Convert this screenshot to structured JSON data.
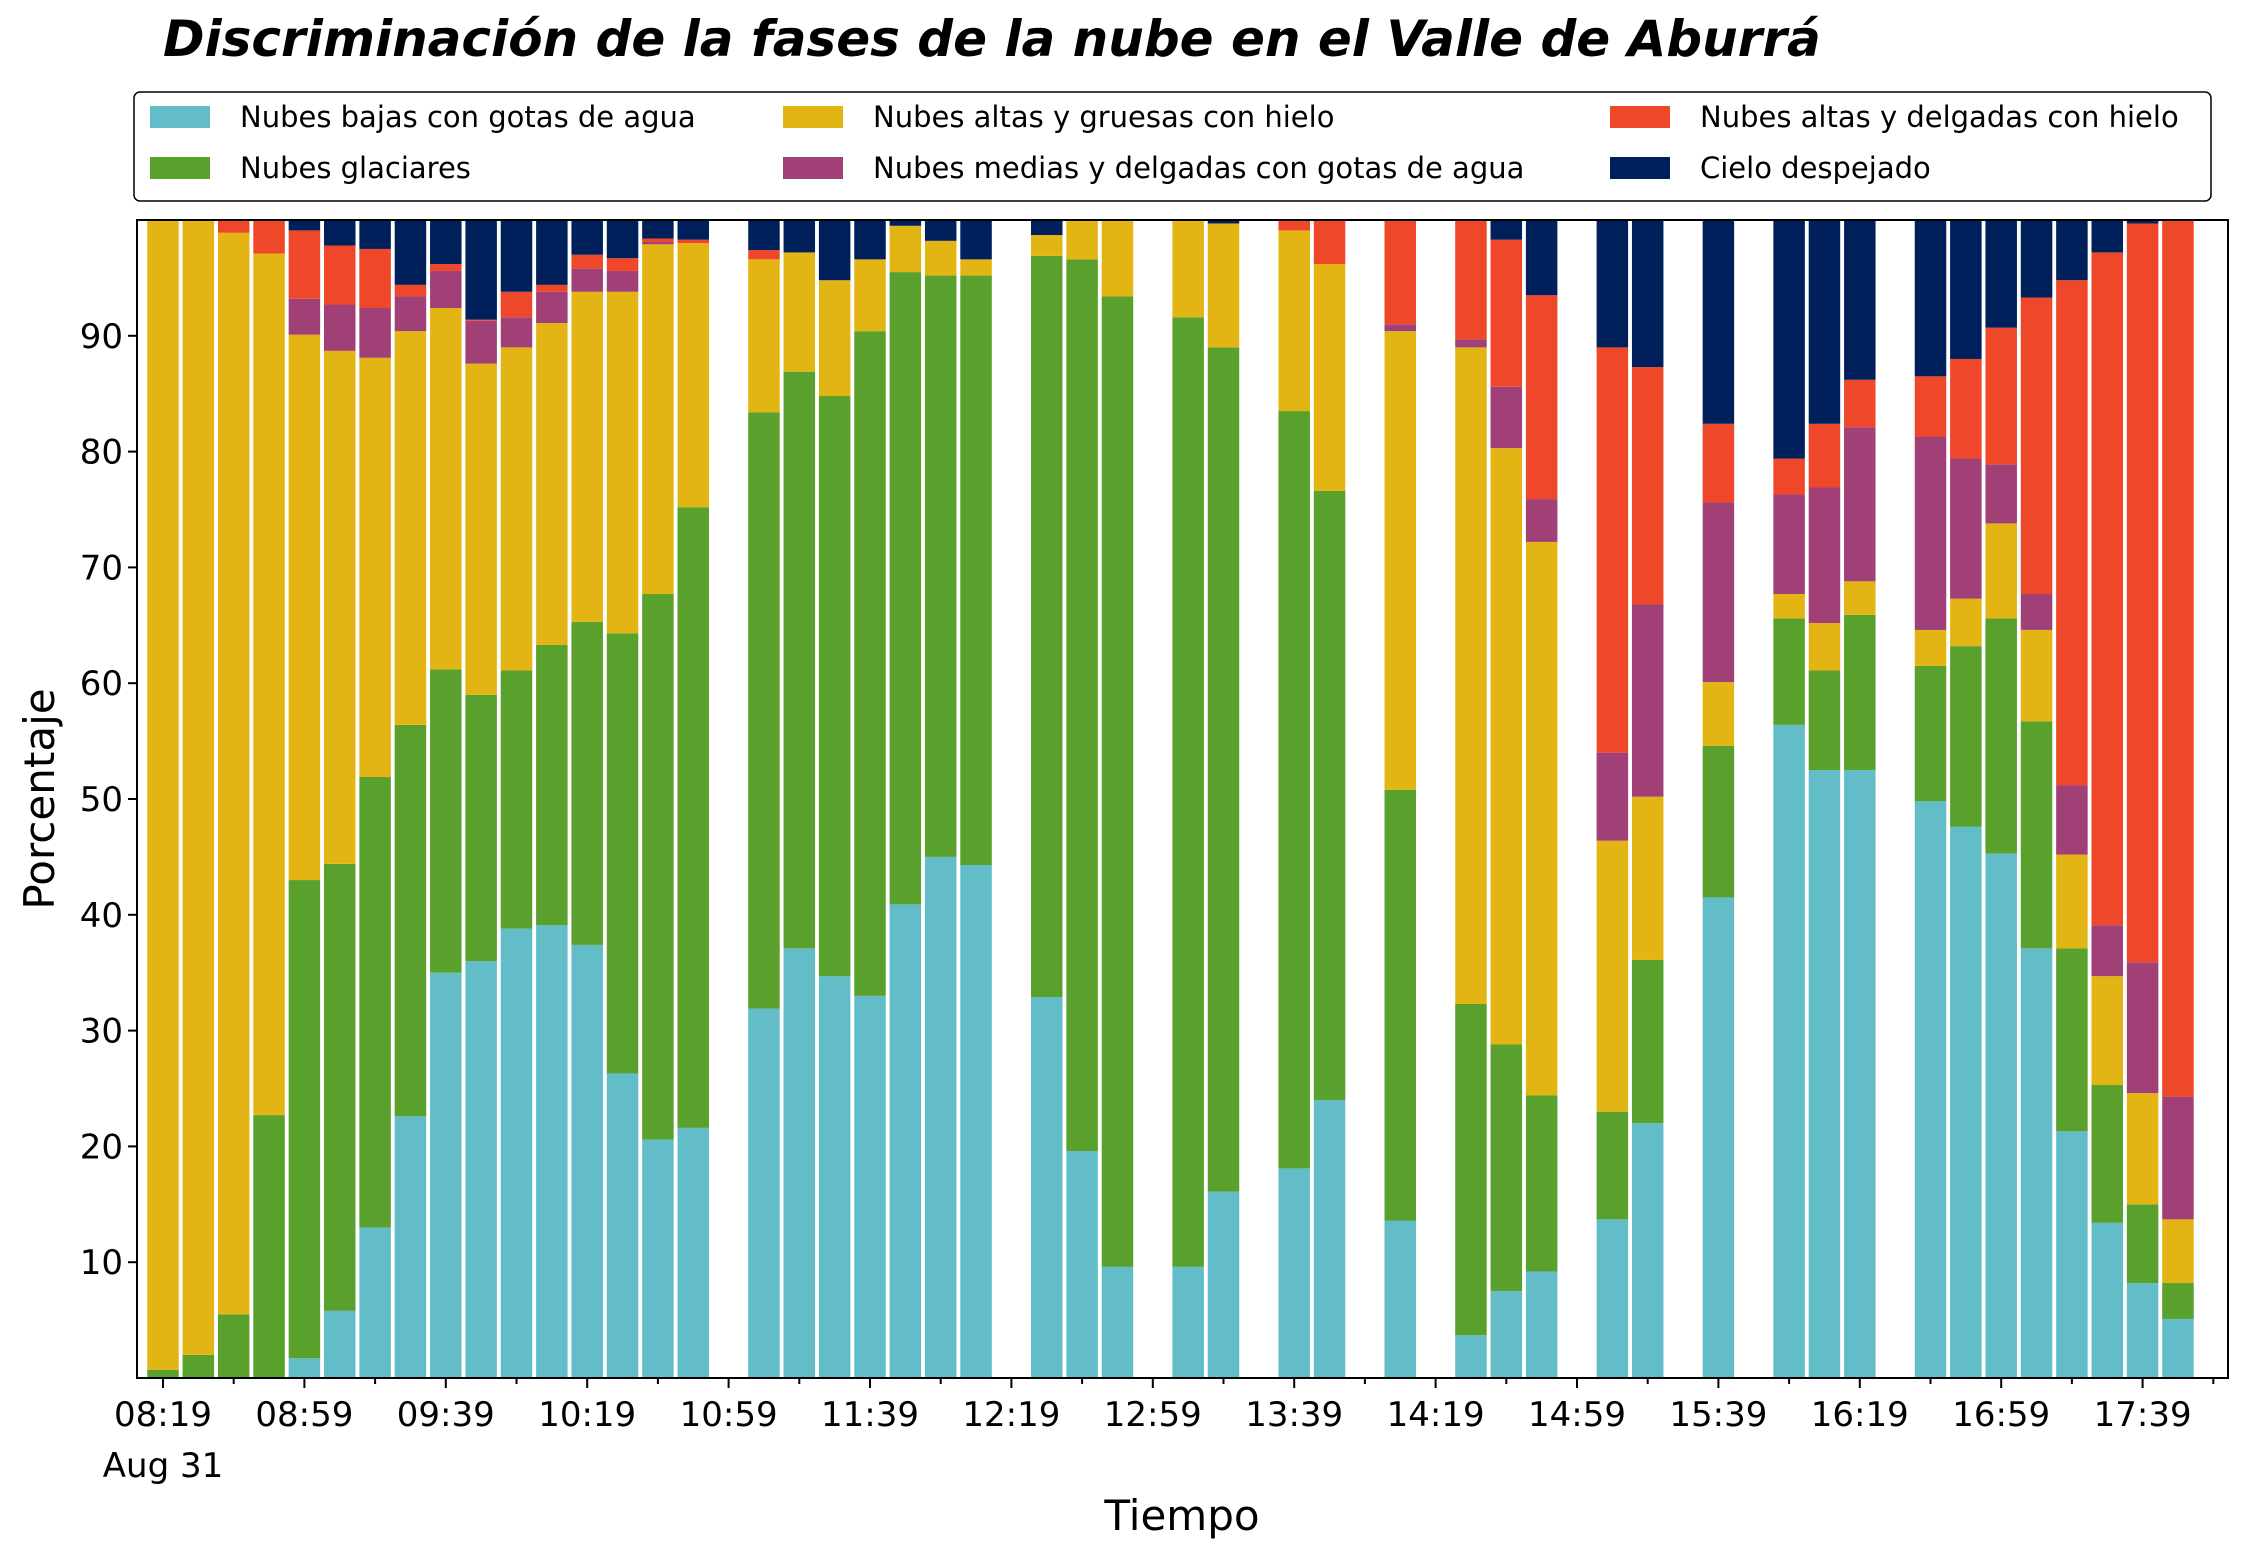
{
  "chart_data": {
    "type": "bar",
    "stacked": true,
    "title": "Discriminación de la fases de la nube en el Valle de Aburrá",
    "xlabel": "Tiempo",
    "ylabel": "Porcentaje",
    "ylim": [
      0,
      100
    ],
    "yticks": [
      10,
      20,
      30,
      40,
      50,
      60,
      70,
      80,
      90
    ],
    "x_interval_minutes": 10,
    "x_start": "08:19",
    "xticks": [
      {
        "slot": 0,
        "label": "08:19",
        "sublabel": "Aug 31"
      },
      {
        "slot": 4,
        "label": "08:59"
      },
      {
        "slot": 8,
        "label": "09:39"
      },
      {
        "slot": 12,
        "label": "10:19"
      },
      {
        "slot": 16,
        "label": "10:59"
      },
      {
        "slot": 20,
        "label": "11:39"
      },
      {
        "slot": 24,
        "label": "12:19"
      },
      {
        "slot": 28,
        "label": "12:59"
      },
      {
        "slot": 32,
        "label": "13:39"
      },
      {
        "slot": 36,
        "label": "14:19"
      },
      {
        "slot": 40,
        "label": "14:59"
      },
      {
        "slot": 44,
        "label": "15:39"
      },
      {
        "slot": 48,
        "label": "16:19"
      },
      {
        "slot": 52,
        "label": "16:59"
      },
      {
        "slot": 56,
        "label": "17:39"
      }
    ],
    "legend_position": "top, above plot, 3 columns",
    "grid": false,
    "series": [
      {
        "name": "Nubes bajas con gotas de agua",
        "color": "#63bdc9"
      },
      {
        "name": "Nubes glaciares",
        "color": "#5aa02c"
      },
      {
        "name": "Nubes altas y gruesas con hielo",
        "color": "#e3b514"
      },
      {
        "name": "Nubes medias y delgadas con gotas de agua",
        "color": "#a14077"
      },
      {
        "name": "Nubes altas y delgadas con hielo",
        "color": "#ee472a"
      },
      {
        "name": "Cielo despejado",
        "color": "#00205b"
      }
    ],
    "bars": [
      {
        "slot": 0,
        "values": [
          0,
          0.7,
          99.3,
          0,
          0,
          0
        ]
      },
      {
        "slot": 1,
        "values": [
          0,
          2.0,
          98.0,
          0,
          0,
          0
        ]
      },
      {
        "slot": 2,
        "values": [
          0,
          5.5,
          93.4,
          0,
          1.1,
          0
        ]
      },
      {
        "slot": 3,
        "values": [
          0,
          22.7,
          74.4,
          0,
          2.9,
          0
        ]
      },
      {
        "slot": 4,
        "values": [
          1.7,
          41.3,
          47.1,
          3.1,
          5.9,
          0.9
        ]
      },
      {
        "slot": 5,
        "values": [
          5.8,
          38.6,
          44.3,
          4.0,
          5.1,
          2.2
        ]
      },
      {
        "slot": 6,
        "values": [
          13.0,
          38.9,
          36.2,
          4.3,
          5.1,
          2.5
        ]
      },
      {
        "slot": 7,
        "values": [
          22.6,
          33.8,
          34.0,
          3.0,
          1.0,
          5.6
        ]
      },
      {
        "slot": 8,
        "values": [
          35.0,
          26.2,
          31.2,
          3.2,
          0.6,
          3.8
        ]
      },
      {
        "slot": 9,
        "values": [
          36.0,
          23.0,
          28.6,
          3.7,
          0.1,
          8.6
        ]
      },
      {
        "slot": 10,
        "values": [
          38.8,
          22.3,
          27.9,
          2.6,
          2.2,
          6.2
        ]
      },
      {
        "slot": 11,
        "values": [
          39.1,
          24.2,
          27.8,
          2.7,
          0.6,
          5.6
        ]
      },
      {
        "slot": 12,
        "values": [
          37.4,
          27.9,
          28.5,
          2.0,
          1.2,
          3.0
        ]
      },
      {
        "slot": 13,
        "values": [
          26.3,
          38.0,
          29.5,
          1.8,
          1.1,
          3.3
        ]
      },
      {
        "slot": 14,
        "values": [
          20.6,
          47.1,
          30.2,
          0.2,
          0.3,
          1.6
        ]
      },
      {
        "slot": 15,
        "values": [
          21.6,
          53.6,
          22.8,
          0,
          0.3,
          1.7
        ]
      },
      {
        "slot": 17,
        "values": [
          31.9,
          51.5,
          13.2,
          0,
          0.8,
          2.6
        ]
      },
      {
        "slot": 18,
        "values": [
          37.1,
          49.8,
          10.3,
          0,
          0,
          2.8
        ]
      },
      {
        "slot": 19,
        "values": [
          34.7,
          50.1,
          10.0,
          0,
          0,
          5.2
        ]
      },
      {
        "slot": 20,
        "values": [
          33.0,
          57.4,
          6.2,
          0,
          0,
          3.4
        ]
      },
      {
        "slot": 21,
        "values": [
          40.9,
          54.6,
          4.0,
          0,
          0,
          0.5
        ]
      },
      {
        "slot": 22,
        "values": [
          45.0,
          50.2,
          3.0,
          0,
          0,
          1.8
        ]
      },
      {
        "slot": 23,
        "values": [
          44.3,
          50.9,
          1.4,
          0,
          0,
          3.4
        ]
      },
      {
        "slot": 25,
        "values": [
          32.9,
          64.0,
          1.8,
          0,
          0,
          1.3
        ]
      },
      {
        "slot": 26,
        "values": [
          19.6,
          77.0,
          3.4,
          0,
          0,
          0
        ]
      },
      {
        "slot": 27,
        "values": [
          9.6,
          83.8,
          6.6,
          0,
          0,
          0
        ]
      },
      {
        "slot": 29,
        "values": [
          9.6,
          82.0,
          8.4,
          0,
          0,
          0
        ]
      },
      {
        "slot": 30,
        "values": [
          16.1,
          72.9,
          10.7,
          0,
          0,
          0.3
        ]
      },
      {
        "slot": 32,
        "values": [
          18.1,
          65.4,
          15.6,
          0,
          0.9,
          0
        ]
      },
      {
        "slot": 33,
        "values": [
          24.0,
          52.6,
          19.6,
          0,
          3.8,
          0
        ]
      },
      {
        "slot": 35,
        "values": [
          13.6,
          37.2,
          39.6,
          0.6,
          9.0,
          0
        ]
      },
      {
        "slot": 37,
        "values": [
          3.7,
          28.6,
          56.7,
          0.7,
          10.3,
          0
        ]
      },
      {
        "slot": 38,
        "values": [
          7.5,
          21.3,
          51.5,
          5.3,
          12.7,
          1.7
        ]
      },
      {
        "slot": 39,
        "values": [
          9.2,
          15.2,
          47.8,
          3.7,
          17.6,
          6.5
        ]
      },
      {
        "slot": 41,
        "values": [
          13.7,
          9.3,
          23.4,
          7.6,
          35.0,
          11.0
        ]
      },
      {
        "slot": 42,
        "values": [
          22.0,
          14.1,
          14.1,
          16.6,
          20.5,
          12.7
        ]
      },
      {
        "slot": 44,
        "values": [
          41.5,
          13.1,
          5.5,
          15.5,
          6.8,
          17.6
        ]
      },
      {
        "slot": 46,
        "values": [
          56.4,
          9.2,
          2.1,
          8.6,
          3.1,
          20.6
        ]
      },
      {
        "slot": 47,
        "values": [
          52.5,
          8.6,
          4.1,
          11.7,
          5.5,
          17.6
        ]
      },
      {
        "slot": 48,
        "values": [
          52.5,
          13.4,
          2.9,
          13.3,
          4.1,
          13.8
        ]
      },
      {
        "slot": 50,
        "values": [
          49.8,
          11.7,
          3.1,
          16.7,
          5.2,
          13.5
        ]
      },
      {
        "slot": 51,
        "values": [
          47.6,
          15.6,
          4.1,
          12.1,
          8.6,
          12.0
        ]
      },
      {
        "slot": 52,
        "values": [
          45.3,
          20.3,
          8.2,
          5.1,
          11.8,
          9.3
        ]
      },
      {
        "slot": 53,
        "values": [
          37.1,
          19.6,
          7.9,
          3.1,
          25.6,
          6.7
        ]
      },
      {
        "slot": 54,
        "values": [
          21.3,
          15.8,
          8.1,
          6.0,
          43.6,
          5.2
        ]
      },
      {
        "slot": 55,
        "values": [
          13.4,
          11.9,
          9.4,
          4.4,
          58.1,
          2.8
        ]
      },
      {
        "slot": 56,
        "values": [
          8.2,
          6.8,
          9.6,
          11.3,
          63.8,
          0.3
        ]
      },
      {
        "slot": 57,
        "values": [
          5.1,
          3.1,
          5.5,
          10.6,
          75.7,
          0
        ]
      }
    ]
  }
}
